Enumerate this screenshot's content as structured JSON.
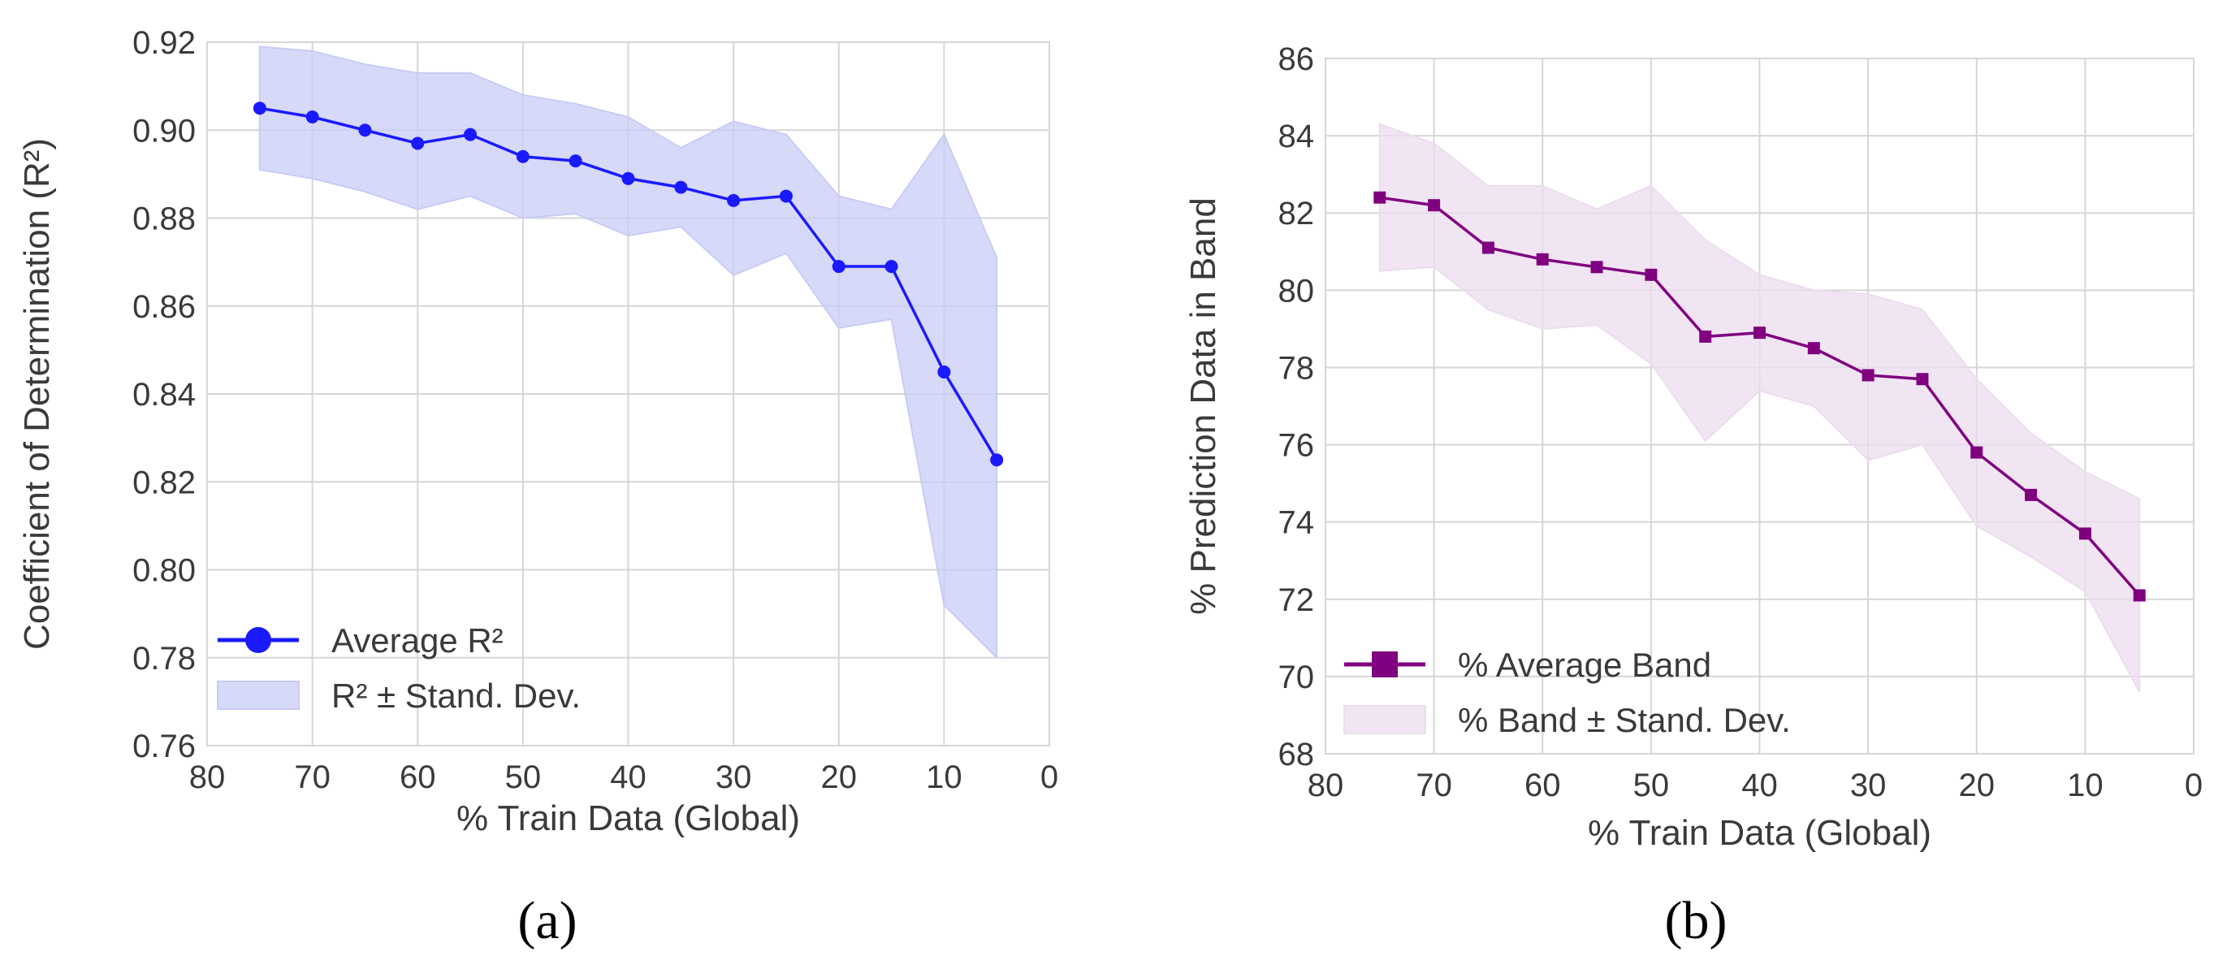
{
  "panel_labels": {
    "a": "(a)",
    "b": "(b)"
  },
  "chart_data": [
    {
      "type": "line",
      "panel": "(a)",
      "title": "",
      "xlabel": "% Train Data (Global)",
      "ylabel": "Coefficient of Determination (R²)",
      "xlim": [
        80,
        0
      ],
      "ylim": [
        0.76,
        0.92
      ],
      "xticks": [
        80,
        70,
        60,
        50,
        40,
        30,
        20,
        10,
        0
      ],
      "xtick_labels": [
        "80",
        "70",
        "60",
        "50",
        "40",
        "30",
        "20",
        "10",
        "0"
      ],
      "yticks": [
        0.76,
        0.78,
        0.8,
        0.82,
        0.84,
        0.86,
        0.88,
        0.9,
        0.92
      ],
      "ytick_labels": [
        "0.76",
        "0.78",
        "0.80",
        "0.82",
        "0.84",
        "0.86",
        "0.88",
        "0.90",
        "0.92"
      ],
      "grid": true,
      "legend_position": "lower-left",
      "x": [
        75,
        70,
        65,
        60,
        55,
        50,
        45,
        40,
        35,
        30,
        25,
        20,
        15,
        10,
        5
      ],
      "series": [
        {
          "name": "Average R²",
          "marker": "circle",
          "color": "#1a1aff",
          "values": [
            0.905,
            0.903,
            0.9,
            0.897,
            0.899,
            0.894,
            0.893,
            0.889,
            0.887,
            0.884,
            0.885,
            0.869,
            0.869,
            0.845,
            0.825
          ]
        }
      ],
      "band": {
        "name": "R² ± Stand. Dev.",
        "color": "#c8ccf6",
        "lower": [
          0.891,
          0.889,
          0.886,
          0.882,
          0.885,
          0.88,
          0.881,
          0.876,
          0.878,
          0.867,
          0.872,
          0.855,
          0.857,
          0.792,
          0.78
        ],
        "upper": [
          0.919,
          0.918,
          0.915,
          0.913,
          0.913,
          0.908,
          0.906,
          0.903,
          0.896,
          0.902,
          0.899,
          0.885,
          0.882,
          0.899,
          0.871
        ]
      }
    },
    {
      "type": "line",
      "panel": "(b)",
      "title": "",
      "xlabel": "% Train Data (Global)",
      "ylabel": "% Prediction Data in Band",
      "xlim": [
        80,
        0
      ],
      "ylim": [
        68,
        86
      ],
      "xticks": [
        80,
        70,
        60,
        50,
        40,
        30,
        20,
        10,
        0
      ],
      "xtick_labels": [
        "80",
        "70",
        "60",
        "50",
        "40",
        "30",
        "20",
        "10",
        "0"
      ],
      "yticks": [
        68,
        70,
        72,
        74,
        76,
        78,
        80,
        82,
        84,
        86
      ],
      "ytick_labels": [
        "68",
        "70",
        "72",
        "74",
        "76",
        "78",
        "80",
        "82",
        "84",
        "86"
      ],
      "grid": true,
      "legend_position": "lower-left",
      "x": [
        75,
        70,
        65,
        60,
        55,
        50,
        45,
        40,
        35,
        30,
        25,
        20,
        15,
        10,
        5
      ],
      "series": [
        {
          "name": "% Average Band",
          "marker": "square",
          "color": "#800080",
          "values": [
            82.4,
            82.2,
            81.1,
            80.8,
            80.6,
            80.4,
            78.8,
            78.9,
            78.5,
            77.8,
            77.7,
            75.8,
            74.7,
            73.7,
            72.1
          ]
        }
      ],
      "band": {
        "name": "% Band ± Stand. Dev.",
        "color": "#ecdcef",
        "lower": [
          80.5,
          80.6,
          79.5,
          79.0,
          79.1,
          78.1,
          76.1,
          77.4,
          77.0,
          75.6,
          76.0,
          73.9,
          73.1,
          72.2,
          69.6
        ],
        "upper": [
          84.3,
          83.8,
          82.7,
          82.7,
          82.1,
          82.7,
          81.3,
          80.4,
          80.0,
          79.9,
          79.5,
          77.7,
          76.3,
          75.3,
          74.6
        ]
      }
    }
  ]
}
